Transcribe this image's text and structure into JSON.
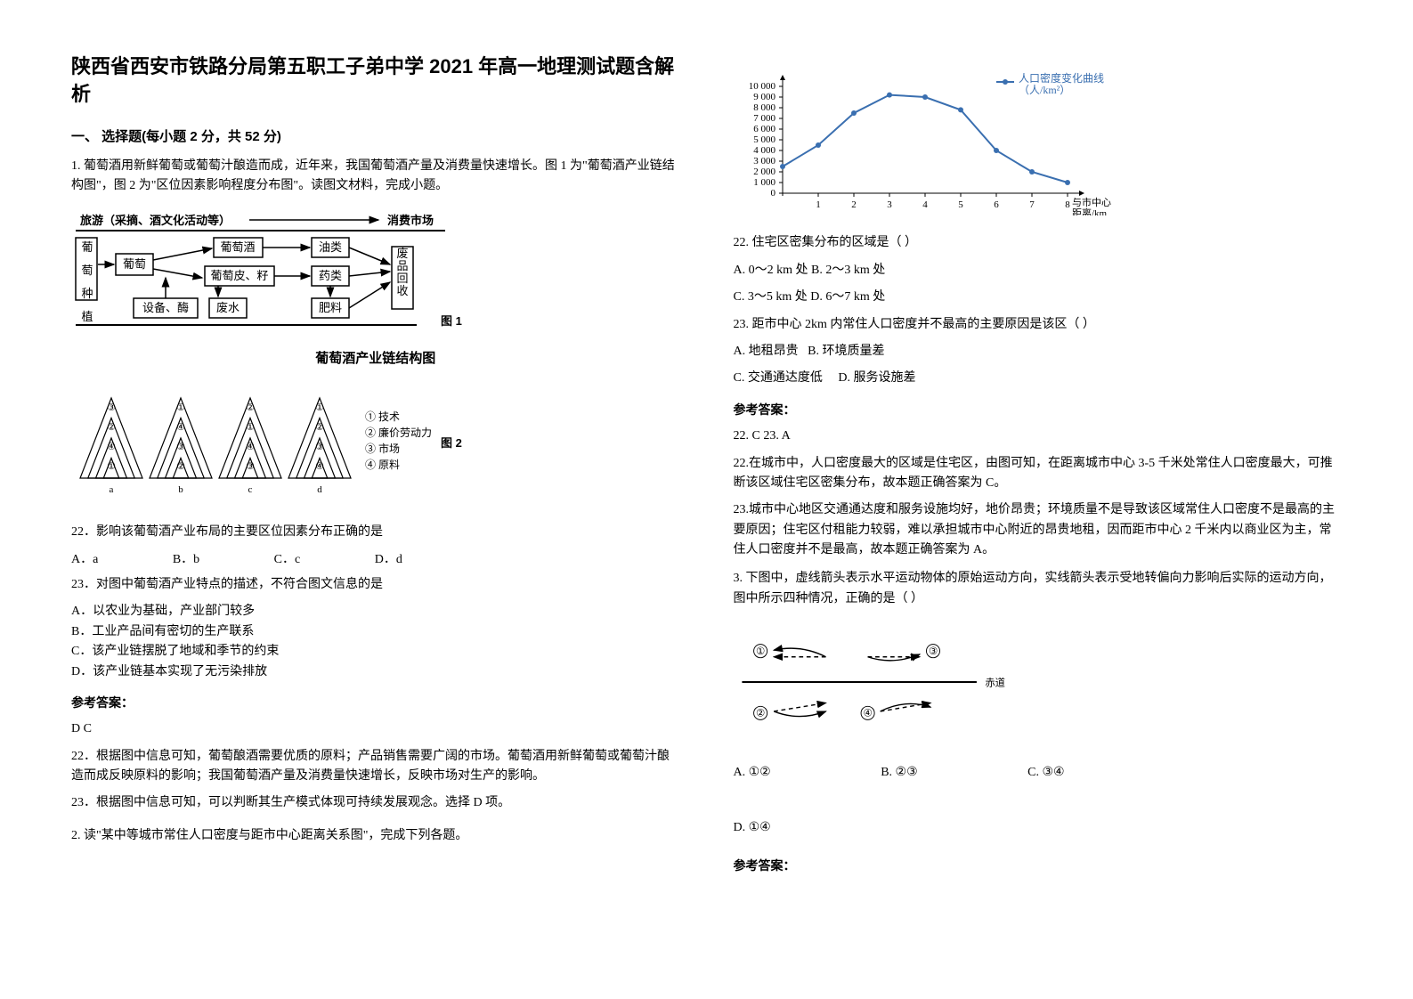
{
  "doc": {
    "title": "陕西省西安市铁路分局第五职工子弟中学 2021 年高一地理测试题含解析",
    "section1": "一、 选择题(每小题 2 分，共 52 分)",
    "q1_intro": "1. 葡萄酒用新鲜葡萄或葡萄汁酿造而成，近年来，我国葡萄酒产量及消费量快速增长。图 1 为\"葡萄酒产业链结构图\"，图 2 为\"区位因素影响程度分布图\"。读图文材料，完成小题。",
    "fig1_caption": "葡萄酒产业链结构图",
    "fig1_label": "图 1",
    "fig2_label": "图 2",
    "q22a": "22．影响该葡萄酒产业布局的主要区位因素分布正确的是",
    "q22a_opts": {
      "a": "A．a",
      "b": "B．b",
      "c": "C．c",
      "d": "D．d"
    },
    "q23a": "23．对图中葡萄酒产业特点的描述，不符合图文信息的是",
    "q23a_opts": {
      "a": "A．以农业为基础，产业部门较多",
      "b": "B．工业产品间有密切的生产联系",
      "c": "C．该产业链摆脱了地域和季节的约束",
      "d": "D．该产业链基本实现了无污染排放"
    },
    "ans_label": "参考答案：",
    "ans1": "D  C",
    "ans1_22": "22．根据图中信息可知，葡萄酿酒需要优质的原料；产品销售需要广阔的市场。葡萄酒用新鲜葡萄或葡萄汁酿造而成反映原料的影响；我国葡萄酒产量及消费量快速增长，反映市场对生产的影响。",
    "ans1_23": "23．根据图中信息可知，可以判断其生产模式体现可持续发展观念。选择 D 项。",
    "q2_intro": "2. 读\"某中等城市常住人口密度与距市中心距离关系图\"，完成下列各题。",
    "q22b": "22.  住宅区密集分布的区域是（            ）",
    "q22b_opts": {
      "a": "A. 0～2 km 处",
      "b": "B. 2～3 km 处",
      "c": "C. 3～5 km 处",
      "d": "D. 6～7 km 处"
    },
    "q23b": "23. 距市中心 2km 内常住人口密度并不最高的主要原因是该区（            ）",
    "q23b_opts": {
      "a": "A. 地租昂贵",
      "b": "B. 环境质量差",
      "c": "C. 交通通达度低",
      "d": "D. 服务设施差"
    },
    "ans2": "22. C       23. A",
    "ans2_22": "22.在城市中，人口密度最大的区域是住宅区，由图可知，在距离城市中心 3-5 千米处常住人口密度最大，可推断该区域住宅区密集分布，故本题正确答案为 C。",
    "ans2_23": "23.城市中心地区交通通达度和服务设施均好，地价昂贵；环境质量不是导致该区域常住人口密度不是最高的主要原因；住宅区付租能力较弱，难以承担城市中心附近的昂贵地租，因而距市中心 2 千米内以商业区为主，常住人口密度并不是最高，故本题正确答案为 A。",
    "q3_intro": "3. 下图中，虚线箭头表示水平运动物体的原始运动方向，实线箭头表示受地转偏向力影响后实际的运动方向，图中所示四种情况，正确的是（   ）",
    "q3_opts": {
      "a": "A. ①②",
      "b": "B. ②③",
      "c": "C. ③④",
      "d": "D. ①④"
    },
    "equator_label": "赤道"
  },
  "chain": {
    "boxes": {
      "tourism": "旅游（采摘、酒文化活动等）",
      "market": "消费市场",
      "planting": "葡萄种植",
      "grape": "葡萄",
      "wine": "葡萄酒",
      "oil": "油类",
      "skin": "葡萄皮、籽",
      "med": "药类",
      "equip": "设备、酶",
      "waste": "废水",
      "fertilizer": "肥料",
      "recycle": "废品回收"
    }
  },
  "triangles": {
    "labels": [
      "a",
      "b",
      "c",
      "d"
    ],
    "legend": {
      "1": "① 技术",
      "2": "② 廉价劳动力",
      "3": "③ 市场",
      "4": "④ 原料"
    },
    "layers": {
      "a": [
        "③",
        "②",
        "④",
        "①"
      ],
      "b": [
        "①",
        "④",
        "③",
        "②"
      ],
      "c": [
        "②",
        "①",
        "④",
        "③"
      ],
      "d": [
        "①",
        "②",
        "③",
        "④"
      ]
    }
  },
  "chart": {
    "type": "line",
    "title_legend": "人口密度变化曲线\n（人/km²）",
    "xlabel": "与市中心\n距离/km",
    "y_ticks": [
      0,
      1000,
      2000,
      3000,
      4000,
      5000,
      6000,
      7000,
      8000,
      9000,
      10000
    ],
    "x_ticks": [
      1,
      2,
      3,
      4,
      5,
      6,
      7,
      8
    ],
    "data": [
      {
        "x": 0,
        "y": 2500
      },
      {
        "x": 1,
        "y": 4500
      },
      {
        "x": 2,
        "y": 7500
      },
      {
        "x": 3,
        "y": 9200
      },
      {
        "x": 4,
        "y": 9000
      },
      {
        "x": 5,
        "y": 7800
      },
      {
        "x": 6,
        "y": 4000
      },
      {
        "x": 7,
        "y": 2000
      },
      {
        "x": 8,
        "y": 1000
      }
    ],
    "line_color": "#3a6fb0",
    "axis_color": "#000000",
    "background_color": "#ffffff"
  }
}
